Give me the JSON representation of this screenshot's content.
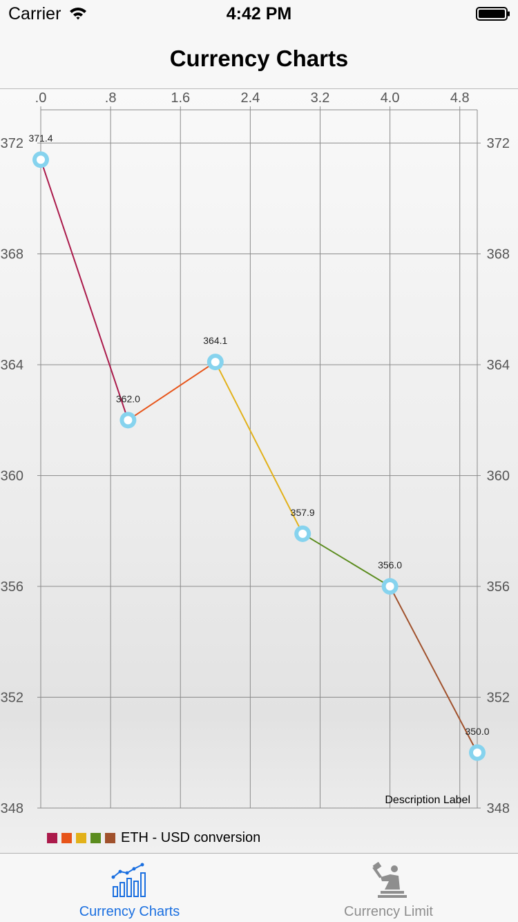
{
  "status_bar": {
    "carrier": "Carrier",
    "time": "4:42 PM",
    "icons": [
      "wifi-icon",
      "battery-icon"
    ]
  },
  "nav": {
    "title": "Currency Charts"
  },
  "chart_data": {
    "type": "line",
    "x": [
      0,
      1,
      2,
      3,
      4,
      5
    ],
    "values": [
      371.4,
      362.0,
      364.1,
      357.9,
      356.0,
      350.0
    ],
    "value_labels": [
      "371.4",
      "362.0",
      "364.1",
      "357.9",
      "356.0",
      "350.0"
    ],
    "segment_colors": [
      "#ab1a4b",
      "#e75419",
      "#e2b11a",
      "#5b8c1e",
      "#a0512c"
    ],
    "marker_color": "#86d3ee",
    "x_ticks": [
      0,
      0.8,
      1.6,
      2.4,
      3.2,
      4.0,
      4.8
    ],
    "x_tick_labels": [
      ".0",
      ".8",
      "1.6",
      "2.4",
      "3.2",
      "4.0",
      "4.8"
    ],
    "xlim": [
      0,
      5
    ],
    "y_ticks": [
      348,
      352,
      356,
      360,
      364,
      368,
      372
    ],
    "y_tick_labels": [
      "348",
      "352",
      "356",
      "360",
      "364",
      "368",
      "372"
    ],
    "ylim": [
      348,
      373.2
    ],
    "grid": true,
    "x_axis_position": "top",
    "y_axes": "left and right",
    "description": "Description Label",
    "legend": {
      "colors": [
        "#ab1a4b",
        "#e75419",
        "#e2b11a",
        "#5b8c1e",
        "#a0512c"
      ],
      "label": "ETH - USD conversion",
      "position": "bottom-left"
    }
  },
  "tabs": [
    {
      "label": "Currency Charts",
      "icon": "bar-chart-icon",
      "selected": true,
      "color": "#1a6fe0"
    },
    {
      "label": "Currency Limit",
      "icon": "hammer-person-icon",
      "selected": false,
      "color": "#8e8e8e"
    }
  ]
}
